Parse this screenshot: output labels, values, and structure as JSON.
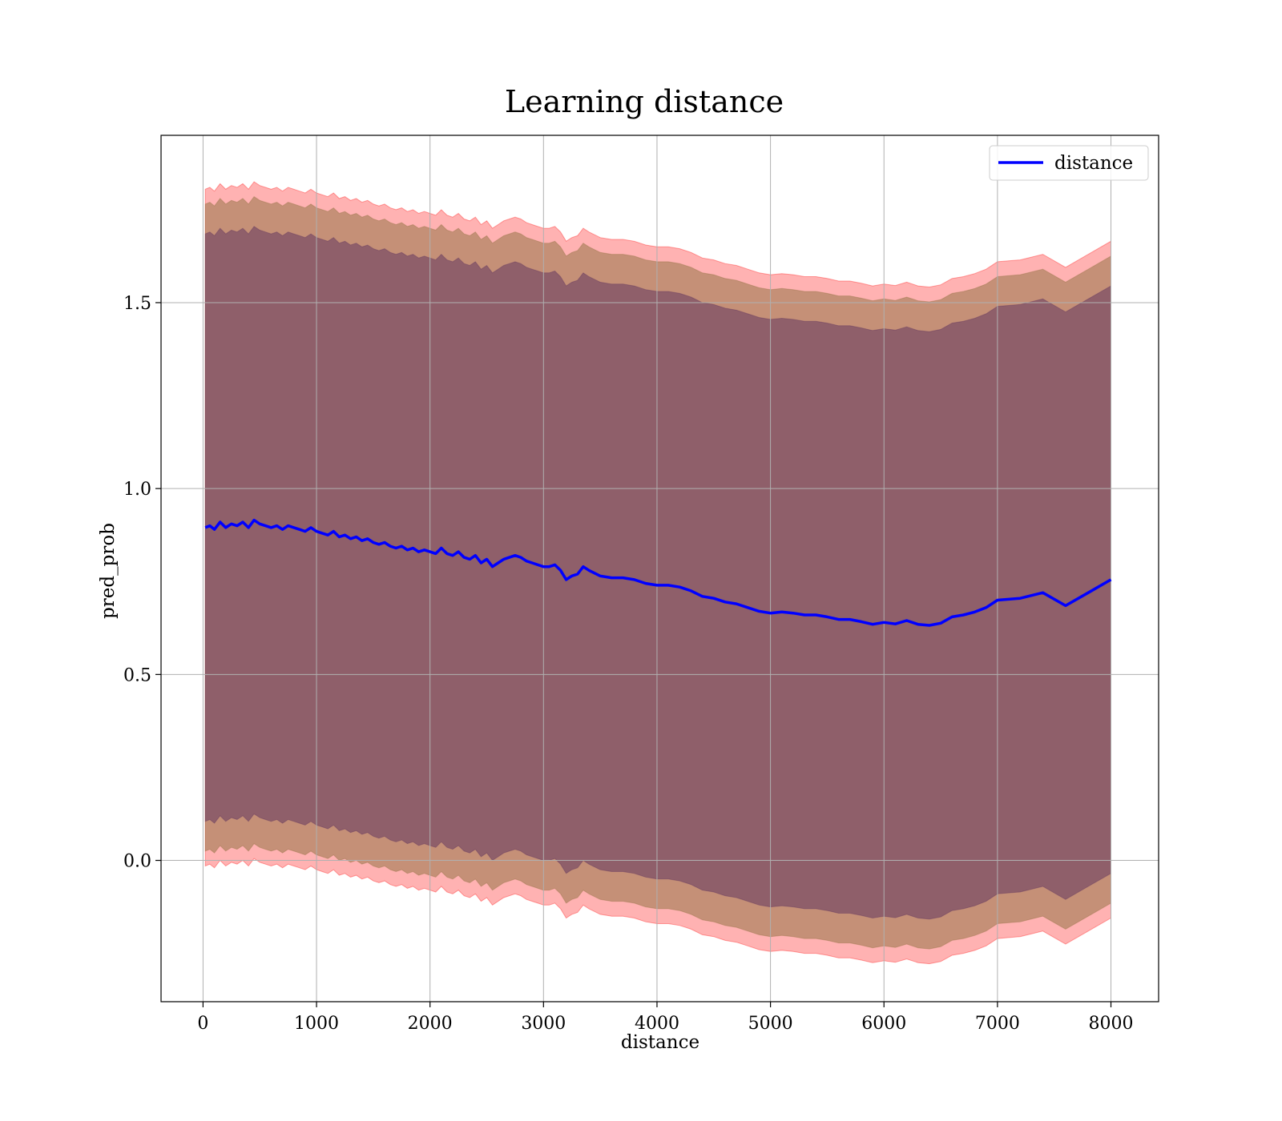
{
  "chart_data": {
    "type": "line",
    "title": "Learning distance",
    "xlabel": "distance",
    "ylabel": "pred_prob",
    "xlim": [
      -370,
      8420
    ],
    "ylim": [
      -0.38,
      1.95
    ],
    "xticks": [
      0,
      1000,
      2000,
      3000,
      4000,
      5000,
      6000,
      7000,
      8000
    ],
    "yticks": [
      0.0,
      0.5,
      1.0,
      1.5
    ],
    "ytick_labels": [
      "0.0",
      "0.5",
      "1.0",
      "1.5"
    ],
    "grid": true,
    "legend": {
      "position": "top-right",
      "entries": [
        "distance"
      ]
    },
    "colors": {
      "line": "#0000ff",
      "band_outer": "#ff0000",
      "band_middle": "#8b6d3c",
      "band_inner": "#5a2d5d"
    },
    "series": [
      {
        "name": "distance",
        "x": [
          20,
          60,
          100,
          150,
          200,
          250,
          300,
          350,
          400,
          450,
          500,
          550,
          600,
          650,
          700,
          750,
          800,
          850,
          900,
          950,
          1000,
          1050,
          1100,
          1150,
          1200,
          1250,
          1300,
          1350,
          1400,
          1450,
          1500,
          1550,
          1600,
          1650,
          1700,
          1750,
          1800,
          1850,
          1900,
          1950,
          2000,
          2050,
          2100,
          2150,
          2200,
          2250,
          2300,
          2350,
          2400,
          2450,
          2500,
          2550,
          2600,
          2650,
          2700,
          2750,
          2800,
          2850,
          2900,
          2950,
          3000,
          3050,
          3100,
          3150,
          3200,
          3250,
          3300,
          3350,
          3400,
          3500,
          3600,
          3700,
          3800,
          3900,
          4000,
          4100,
          4200,
          4300,
          4400,
          4500,
          4600,
          4700,
          4800,
          4900,
          5000,
          5100,
          5200,
          5300,
          5400,
          5500,
          5600,
          5700,
          5800,
          5900,
          6000,
          6100,
          6200,
          6300,
          6400,
          6500,
          6600,
          6700,
          6800,
          6900,
          7000,
          7200,
          7400,
          7600,
          7800,
          8000
        ],
        "values": [
          0.895,
          0.9,
          0.89,
          0.91,
          0.895,
          0.905,
          0.9,
          0.91,
          0.895,
          0.915,
          0.905,
          0.9,
          0.895,
          0.9,
          0.89,
          0.9,
          0.895,
          0.89,
          0.885,
          0.895,
          0.885,
          0.88,
          0.875,
          0.885,
          0.87,
          0.875,
          0.865,
          0.87,
          0.86,
          0.865,
          0.855,
          0.85,
          0.855,
          0.845,
          0.84,
          0.845,
          0.835,
          0.84,
          0.83,
          0.835,
          0.83,
          0.825,
          0.84,
          0.825,
          0.82,
          0.83,
          0.815,
          0.81,
          0.82,
          0.8,
          0.81,
          0.79,
          0.8,
          0.81,
          0.815,
          0.82,
          0.815,
          0.805,
          0.8,
          0.795,
          0.79,
          0.79,
          0.795,
          0.78,
          0.755,
          0.765,
          0.77,
          0.79,
          0.78,
          0.765,
          0.76,
          0.76,
          0.755,
          0.745,
          0.74,
          0.74,
          0.735,
          0.725,
          0.71,
          0.705,
          0.695,
          0.69,
          0.68,
          0.67,
          0.665,
          0.668,
          0.665,
          0.66,
          0.66,
          0.655,
          0.648,
          0.648,
          0.642,
          0.635,
          0.64,
          0.636,
          0.645,
          0.635,
          0.632,
          0.638,
          0.655,
          0.66,
          0.668,
          0.68,
          0.7,
          0.705,
          0.72,
          0.685,
          0.72,
          0.755
        ]
      }
    ],
    "bands": [
      {
        "offset": 0.91,
        "color": "#ff0000",
        "opacity": 0.3
      },
      {
        "offset": 0.87,
        "color": "#8b6d3c",
        "opacity": 0.5
      },
      {
        "offset": 0.79,
        "color": "#5a2d5d",
        "opacity": 0.5
      }
    ]
  }
}
